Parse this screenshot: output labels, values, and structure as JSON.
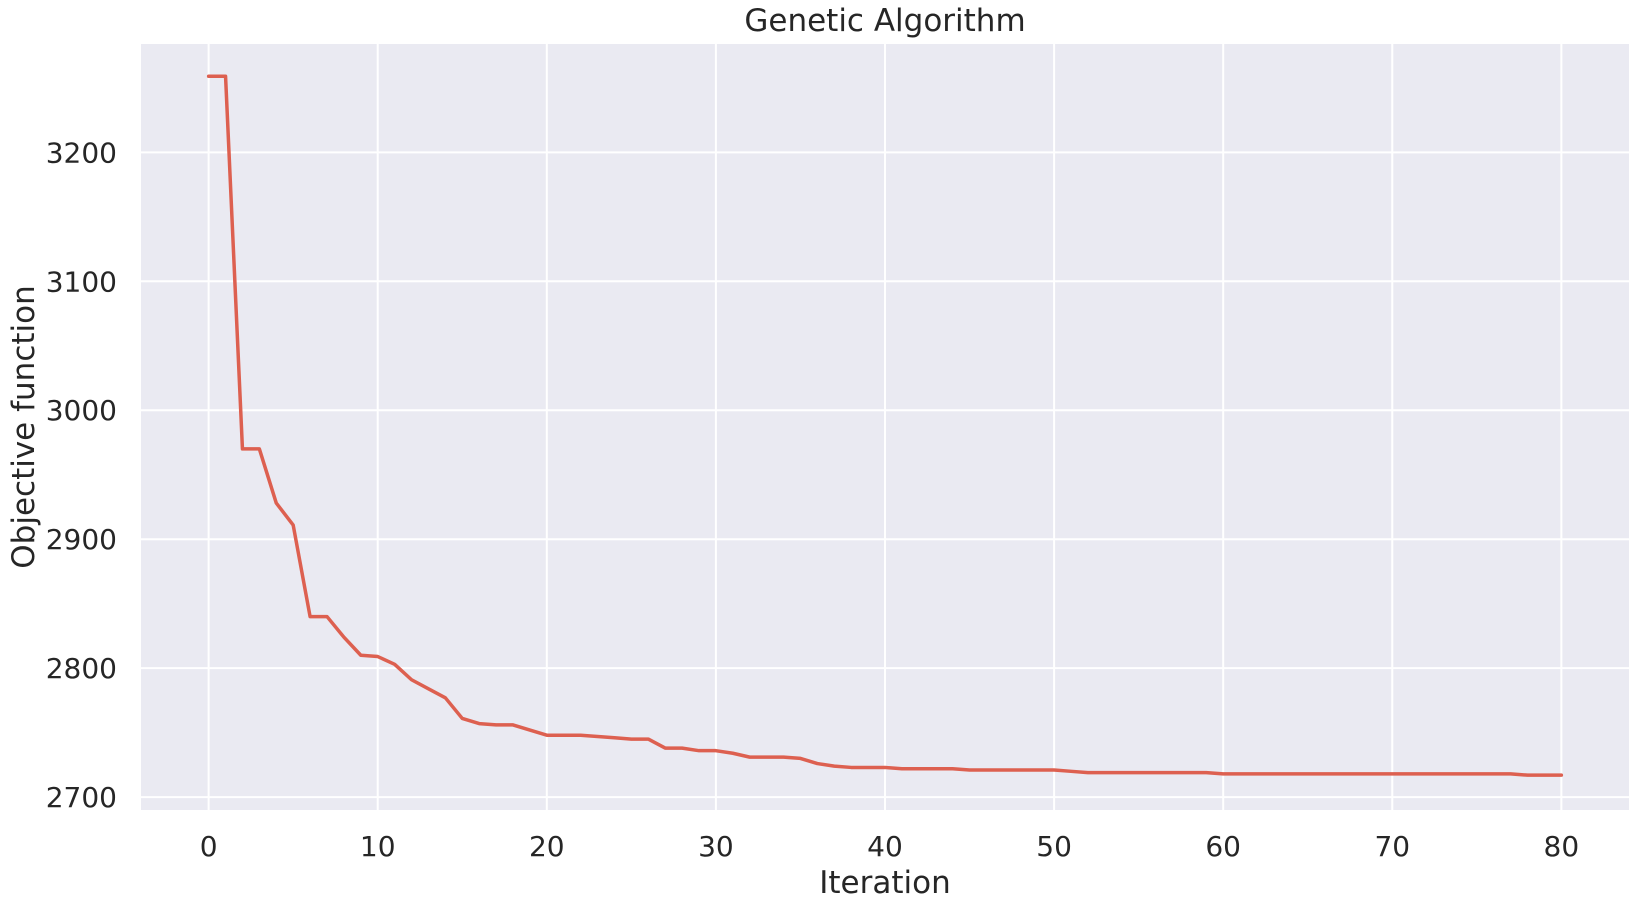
{
  "chart_data": {
    "type": "line",
    "title": "Genetic Algorithm",
    "xlabel": "Iteration",
    "ylabel": "Objective function",
    "xlim": [
      -4,
      84
    ],
    "ylim": [
      2690,
      3284
    ],
    "xticks": [
      0,
      10,
      20,
      30,
      40,
      50,
      60,
      70,
      80
    ],
    "yticks": [
      2700,
      2800,
      2900,
      3000,
      3100,
      3200
    ],
    "grid": true,
    "legend": "none",
    "colors": {
      "background": "#eaeaf2",
      "grid": "#ffffff",
      "series": "#dd6050"
    },
    "series": [
      {
        "x": [
          0,
          1,
          2,
          3,
          4,
          5,
          6,
          7,
          8,
          9,
          10,
          11,
          12,
          13,
          14,
          15,
          16,
          17,
          18,
          19,
          20,
          21,
          22,
          23,
          24,
          25,
          26,
          27,
          28,
          29,
          30,
          31,
          32,
          33,
          34,
          35,
          36,
          37,
          38,
          39,
          40,
          41,
          42,
          43,
          44,
          45,
          46,
          47,
          48,
          49,
          50,
          51,
          52,
          53,
          54,
          55,
          56,
          57,
          58,
          59,
          60,
          61,
          62,
          63,
          64,
          65,
          66,
          67,
          68,
          69,
          70,
          71,
          72,
          73,
          74,
          75,
          76,
          77,
          78,
          79,
          80
        ],
        "y": [
          3259,
          3259,
          2970,
          2970,
          2928,
          2911,
          2840,
          2840,
          2824,
          2810,
          2809,
          2803,
          2791,
          2784,
          2777,
          2761,
          2757,
          2756,
          2756,
          2752,
          2748,
          2748,
          2748,
          2747,
          2746,
          2745,
          2745,
          2738,
          2738,
          2736,
          2736,
          2734,
          2731,
          2731,
          2731,
          2730,
          2726,
          2724,
          2723,
          2723,
          2723,
          2722,
          2722,
          2722,
          2722,
          2721,
          2721,
          2721,
          2721,
          2721,
          2721,
          2720,
          2719,
          2719,
          2719,
          2719,
          2719,
          2719,
          2719,
          2719,
          2718,
          2718,
          2718,
          2718,
          2718,
          2718,
          2718,
          2718,
          2718,
          2718,
          2718,
          2718,
          2718,
          2718,
          2718,
          2718,
          2718,
          2718,
          2717,
          2717,
          2717
        ]
      }
    ]
  }
}
